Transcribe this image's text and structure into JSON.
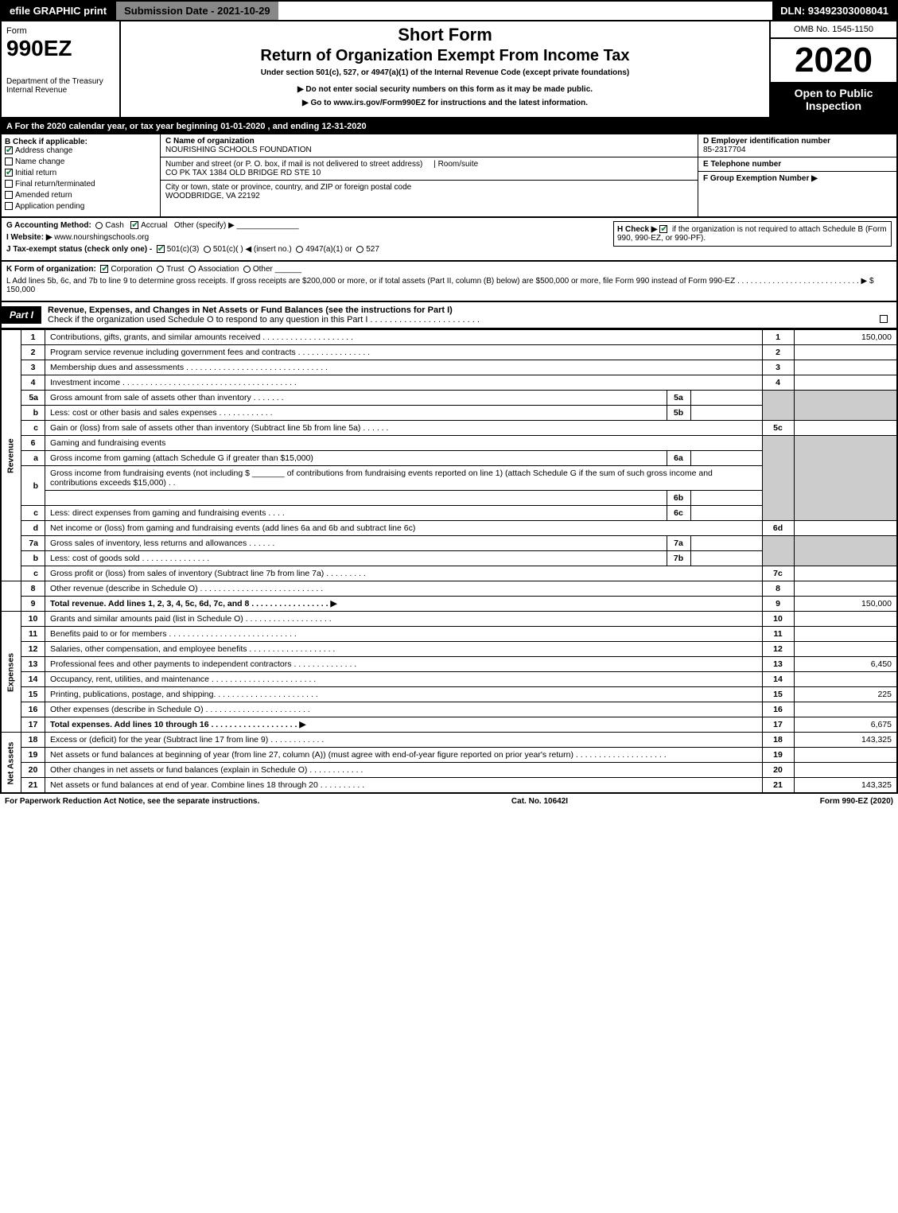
{
  "topbar": {
    "efile": "efile GRAPHIC print",
    "submission": "Submission Date - 2021-10-29",
    "dln": "DLN: 93492303008041"
  },
  "header": {
    "form_word": "Form",
    "form_number": "990EZ",
    "dept": "Department of the Treasury Internal Revenue",
    "short_form": "Short Form",
    "return_title": "Return of Organization Exempt From Income Tax",
    "under": "Under section 501(c), 527, or 4947(a)(1) of the Internal Revenue Code (except private foundations)",
    "do_not_enter": "▶ Do not enter social security numbers on this form as it may be made public.",
    "goto": "▶ Go to www.irs.gov/Form990EZ for instructions and the latest information.",
    "omb": "OMB No. 1545-1150",
    "year": "2020",
    "public": "Open to Public Inspection"
  },
  "taxyear": "A For the 2020 calendar year, or tax year beginning 01-01-2020 , and ending 12-31-2020",
  "sectionB": {
    "title": "B Check if applicable:",
    "items": [
      {
        "label": "Address change",
        "checked": true
      },
      {
        "label": "Name change",
        "checked": false
      },
      {
        "label": "Initial return",
        "checked": true
      },
      {
        "label": "Final return/terminated",
        "checked": false
      },
      {
        "label": "Amended return",
        "checked": false
      },
      {
        "label": "Application pending",
        "checked": false
      }
    ]
  },
  "sectionC": {
    "name_label": "C Name of organization",
    "name": "NOURISHING SCHOOLS FOUNDATION",
    "addr_label": "Number and street (or P. O. box, if mail is not delivered to street address)",
    "room_label": "Room/suite",
    "addr": "CO PK TAX 1384 OLD BRIDGE RD STE 10",
    "city_label": "City or town, state or province, country, and ZIP or foreign postal code",
    "city": "WOODBRIDGE, VA  22192"
  },
  "sectionD": {
    "ein_label": "D Employer identification number",
    "ein": "85-2317704",
    "phone_label": "E Telephone number",
    "group_label": "F Group Exemption Number  ▶"
  },
  "meta": {
    "g": "G Accounting Method:",
    "g_cash": "Cash",
    "g_accrual": "Accrual",
    "g_other": "Other (specify) ▶",
    "h": "H  Check ▶",
    "h_text": "if the organization is not required to attach Schedule B (Form 990, 990-EZ, or 990-PF).",
    "i": "I Website: ▶",
    "i_val": "www.nourshingschools.org",
    "j": "J Tax-exempt status (check only one) -",
    "j_501c3": "501(c)(3)",
    "j_501c": "501(c)(  ) ◀ (insert no.)",
    "j_4947": "4947(a)(1) or",
    "j_527": "527",
    "k": "K Form of organization:",
    "k_corp": "Corporation",
    "k_trust": "Trust",
    "k_assoc": "Association",
    "k_other": "Other",
    "l": "L Add lines 5b, 6c, and 7b to line 9 to determine gross receipts. If gross receipts are $200,000 or more, or if total assets (Part II, column (B) below) are $500,000 or more, file Form 990 instead of Form 990-EZ  .  .  .  .  .  .  .  .  .  .  .  .  .  .  .  .  .  .  .  .  .  .  .  .  .  .  .  .  ▶ $ 150,000"
  },
  "part1": {
    "label": "Part I",
    "title": "Revenue, Expenses, and Changes in Net Assets or Fund Balances (see the instructions for Part I)",
    "check": "Check if the organization used Schedule O to respond to any question in this Part I  .  .  .  .  .  .  .  .  .  .  .  .  .  .  .  .  .  .  .  .  .  .  .",
    "vlabels": {
      "revenue": "Revenue",
      "expenses": "Expenses",
      "netassets": "Net Assets"
    }
  },
  "lines": {
    "l1": {
      "n": "1",
      "t": "Contributions, gifts, grants, and similar amounts received  .  .  .  .  .  .  .  .  .  .  .  .  .  .  .  .  .  .  .  .",
      "nc": "1",
      "amt": "150,000"
    },
    "l2": {
      "n": "2",
      "t": "Program service revenue including government fees and contracts  .  .  .  .  .  .  .  .  .  .  .  .  .  .  .  .",
      "nc": "2",
      "amt": ""
    },
    "l3": {
      "n": "3",
      "t": "Membership dues and assessments  .  .  .  .  .  .  .  .  .  .  .  .  .  .  .  .  .  .  .  .  .  .  .  .  .  .  .  .  .  .  .",
      "nc": "3",
      "amt": ""
    },
    "l4": {
      "n": "4",
      "t": "Investment income  .  .  .  .  .  .  .  .  .  .  .  .  .  .  .  .  .  .  .  .  .  .  .  .  .  .  .  .  .  .  .  .  .  .  .  .  .  .",
      "nc": "4",
      "amt": ""
    },
    "l5a": {
      "n": "5a",
      "t": "Gross amount from sale of assets other than inventory  .  .  .  .  .  .  .",
      "sn": "5a",
      "sv": ""
    },
    "l5b": {
      "n": "b",
      "t": "Less: cost or other basis and sales expenses  .  .  .  .  .  .  .  .  .  .  .  .",
      "sn": "5b",
      "sv": ""
    },
    "l5c": {
      "n": "c",
      "t": "Gain or (loss) from sale of assets other than inventory (Subtract line 5b from line 5a)  .  .  .  .  .  .",
      "nc": "5c",
      "amt": ""
    },
    "l6": {
      "n": "6",
      "t": "Gaming and fundraising events"
    },
    "l6a": {
      "n": "a",
      "t": "Gross income from gaming (attach Schedule G if greater than $15,000)",
      "sn": "6a",
      "sv": ""
    },
    "l6b": {
      "n": "b",
      "t1": "Gross income from fundraising events (not including $",
      "t2": "of contributions from fundraising events reported on line 1) (attach Schedule G if the sum of such gross income and contributions exceeds $15,000)   .   .",
      "sn": "6b",
      "sv": ""
    },
    "l6c": {
      "n": "c",
      "t": "Less: direct expenses from gaming and fundraising events   .   .   .   .",
      "sn": "6c",
      "sv": ""
    },
    "l6d": {
      "n": "d",
      "t": "Net income or (loss) from gaming and fundraising events (add lines 6a and 6b and subtract line 6c)",
      "nc": "6d",
      "amt": ""
    },
    "l7a": {
      "n": "7a",
      "t": "Gross sales of inventory, less returns and allowances  .  .  .  .  .  .",
      "sn": "7a",
      "sv": ""
    },
    "l7b": {
      "n": "b",
      "t": "Less: cost of goods sold   .   .   .   .   .   .   .   .   .   .   .   .   .   .   .",
      "sn": "7b",
      "sv": ""
    },
    "l7c": {
      "n": "c",
      "t": "Gross profit or (loss) from sales of inventory (Subtract line 7b from line 7a)  .  .  .  .  .  .  .  .  .",
      "nc": "7c",
      "amt": ""
    },
    "l8": {
      "n": "8",
      "t": "Other revenue (describe in Schedule O)  .  .  .  .  .  .  .  .  .  .  .  .  .  .  .  .  .  .  .  .  .  .  .  .  .  .  .",
      "nc": "8",
      "amt": ""
    },
    "l9": {
      "n": "9",
      "t": "Total revenue. Add lines 1, 2, 3, 4, 5c, 6d, 7c, and 8   .  .  .  .  .  .  .  .  .  .  .  .  .  .  .  .  .   ▶",
      "nc": "9",
      "amt": "150,000"
    },
    "l10": {
      "n": "10",
      "t": "Grants and similar amounts paid (list in Schedule O)  .  .  .  .  .  .  .  .  .  .  .  .  .  .  .  .  .  .  .",
      "nc": "10",
      "amt": ""
    },
    "l11": {
      "n": "11",
      "t": "Benefits paid to or for members   .  .  .  .  .  .  .  .  .  .  .  .  .  .  .  .  .  .  .  .  .  .  .  .  .  .  .  .",
      "nc": "11",
      "amt": ""
    },
    "l12": {
      "n": "12",
      "t": "Salaries, other compensation, and employee benefits  .  .  .  .  .  .  .  .  .  .  .  .  .  .  .  .  .  .  .",
      "nc": "12",
      "amt": ""
    },
    "l13": {
      "n": "13",
      "t": "Professional fees and other payments to independent contractors  .  .  .  .  .  .  .  .  .  .  .  .  .  .",
      "nc": "13",
      "amt": "6,450"
    },
    "l14": {
      "n": "14",
      "t": "Occupancy, rent, utilities, and maintenance  .  .  .  .  .  .  .  .  .  .  .  .  .  .  .  .  .  .  .  .  .  .  .",
      "nc": "14",
      "amt": ""
    },
    "l15": {
      "n": "15",
      "t": "Printing, publications, postage, and shipping.  .  .  .  .  .  .  .  .  .  .  .  .  .  .  .  .  .  .  .  .  .  .",
      "nc": "15",
      "amt": "225"
    },
    "l16": {
      "n": "16",
      "t": "Other expenses (describe in Schedule O)   .  .  .  .  .  .  .  .  .  .  .  .  .  .  .  .  .  .  .  .  .  .  .",
      "nc": "16",
      "amt": ""
    },
    "l17": {
      "n": "17",
      "t": "Total expenses. Add lines 10 through 16   .  .  .  .  .  .  .  .  .  .  .  .  .  .  .  .  .  .  .   ▶",
      "nc": "17",
      "amt": "6,675"
    },
    "l18": {
      "n": "18",
      "t": "Excess or (deficit) for the year (Subtract line 17 from line 9)   .   .   .   .   .   .   .   .   .   .   .   .",
      "nc": "18",
      "amt": "143,325"
    },
    "l19": {
      "n": "19",
      "t": "Net assets or fund balances at beginning of year (from line 27, column (A)) (must agree with end-of-year figure reported on prior year's return)  .  .  .  .  .  .  .  .  .  .  .  .  .  .  .  .  .  .  .  .",
      "nc": "19",
      "amt": ""
    },
    "l20": {
      "n": "20",
      "t": "Other changes in net assets or fund balances (explain in Schedule O)  .  .  .  .  .  .  .  .  .  .  .  .",
      "nc": "20",
      "amt": ""
    },
    "l21": {
      "n": "21",
      "t": "Net assets or fund balances at end of year. Combine lines 18 through 20  .  .  .  .  .  .  .  .  .  .",
      "nc": "21",
      "amt": "143,325"
    }
  },
  "footer": {
    "left": "For Paperwork Reduction Act Notice, see the separate instructions.",
    "center": "Cat. No. 10642I",
    "right": "Form 990-EZ (2020)"
  },
  "colors": {
    "black": "#000000",
    "white": "#ffffff",
    "gray": "#cccccc",
    "darkgray": "#888888",
    "checkgreen": "#0a7a3a"
  }
}
